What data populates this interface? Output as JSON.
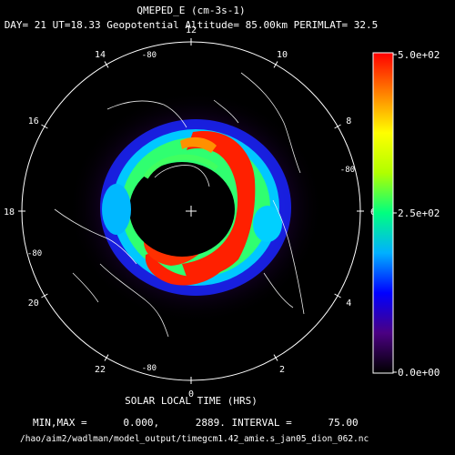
{
  "figure": {
    "title": "QMEPED_E (cm-3s-1)",
    "subtitle": "DAY= 21 UT=18.33 Geopotential Altitude= 85.00km PERIMLAT= 32.5",
    "xlabel": "SOLAR LOCAL TIME (HRS)",
    "minmax_text": "MIN,MAX =      0.000,      2889. INTERVAL =      75.00",
    "file_path": "/hao/aim2/wadlman/model_output/timegcm1.42_amie.s_jan05_dion_062.nc",
    "colorbar_labels": [
      "5.0e+02",
      "2.5e+02",
      "0.0e+00"
    ],
    "colorbar_colors": [
      "#000000",
      "#4b0082",
      "#0000ff",
      "#00b0ff",
      "#00ff80",
      "#b0ff00",
      "#ffff00",
      "#ff8000",
      "#ff0000"
    ],
    "latitude_labels": [
      {
        "text": "-80",
        "angle": 345
      },
      {
        "text": "-80",
        "angle": 195
      },
      {
        "text": "-80",
        "angle": 255
      },
      {
        "text": "-80",
        "angle": 75
      }
    ]
  },
  "chart_data": {
    "type": "heatmap",
    "title": "QMEPED_E (cm-3s-1)",
    "xlabel": "SOLAR LOCAL TIME (HRS)",
    "projection": "polar",
    "local_time_labels": [
      "0",
      "2",
      "4",
      "6",
      "8",
      "10",
      "12",
      "14",
      "16",
      "18",
      "20",
      "22"
    ],
    "zlim": [
      0,
      500
    ],
    "min": 0.0,
    "max": 2889,
    "interval": 75.0,
    "perimeter_latitude": 32.5,
    "altitude_km": 85.0,
    "day": 21,
    "ut": 18.33
  }
}
